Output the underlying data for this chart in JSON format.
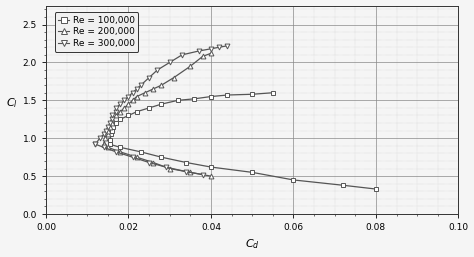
{
  "xlabel": "C_{d}",
  "ylabel": "C_{l}",
  "xlim": [
    0.0,
    0.1
  ],
  "ylim": [
    0.0,
    2.75
  ],
  "xticks": [
    0.0,
    0.02,
    0.04,
    0.06,
    0.08,
    0.1
  ],
  "yticks": [
    0.0,
    0.5,
    1.0,
    1.5,
    2.0,
    2.5
  ],
  "background_color": "#f5f5f5",
  "line_color": "#555555",
  "re100k_up_cd": [
    0.0155,
    0.0155,
    0.0158,
    0.016,
    0.0163,
    0.017,
    0.018,
    0.02,
    0.022,
    0.025,
    0.028,
    0.032,
    0.036,
    0.04,
    0.044,
    0.05,
    0.055
  ],
  "re100k_up_cl": [
    0.92,
    0.98,
    1.05,
    1.1,
    1.15,
    1.2,
    1.25,
    1.3,
    1.35,
    1.4,
    1.45,
    1.5,
    1.52,
    1.55,
    1.57,
    1.58,
    1.6
  ],
  "re100k_dn_cd": [
    0.0155,
    0.018,
    0.023,
    0.028,
    0.034,
    0.04,
    0.05,
    0.06,
    0.072,
    0.08
  ],
  "re100k_dn_cl": [
    0.92,
    0.88,
    0.82,
    0.75,
    0.68,
    0.62,
    0.55,
    0.45,
    0.38,
    0.33
  ],
  "re200k_up_cd": [
    0.014,
    0.0143,
    0.015,
    0.015,
    0.0155,
    0.016,
    0.016,
    0.017,
    0.018,
    0.019,
    0.02,
    0.021,
    0.022,
    0.024,
    0.026,
    0.028,
    0.031,
    0.035,
    0.038,
    0.04
  ],
  "re200k_up_cl": [
    0.92,
    1.0,
    1.05,
    1.1,
    1.15,
    1.2,
    1.25,
    1.3,
    1.35,
    1.4,
    1.45,
    1.5,
    1.55,
    1.6,
    1.65,
    1.7,
    1.8,
    1.95,
    2.08,
    2.12
  ],
  "re200k_dn_cd": [
    0.014,
    0.015,
    0.018,
    0.022,
    0.026,
    0.03,
    0.035,
    0.04
  ],
  "re200k_dn_cl": [
    0.92,
    0.88,
    0.82,
    0.75,
    0.68,
    0.6,
    0.55,
    0.5
  ],
  "re300k_up_cd": [
    0.012,
    0.013,
    0.014,
    0.0145,
    0.015,
    0.0155,
    0.016,
    0.016,
    0.017,
    0.017,
    0.018,
    0.019,
    0.02,
    0.021,
    0.022,
    0.023,
    0.025,
    0.027,
    0.03,
    0.033,
    0.037,
    0.04,
    0.042,
    0.044
  ],
  "re300k_up_cl": [
    0.92,
    1.0,
    1.05,
    1.1,
    1.15,
    1.2,
    1.25,
    1.3,
    1.35,
    1.4,
    1.45,
    1.5,
    1.55,
    1.6,
    1.65,
    1.7,
    1.8,
    1.9,
    2.0,
    2.1,
    2.15,
    2.18,
    2.2,
    2.22
  ],
  "re300k_dn_cd": [
    0.012,
    0.014,
    0.017,
    0.021,
    0.025,
    0.029,
    0.034,
    0.038
  ],
  "re300k_dn_cl": [
    0.92,
    0.88,
    0.82,
    0.75,
    0.68,
    0.62,
    0.56,
    0.52
  ]
}
